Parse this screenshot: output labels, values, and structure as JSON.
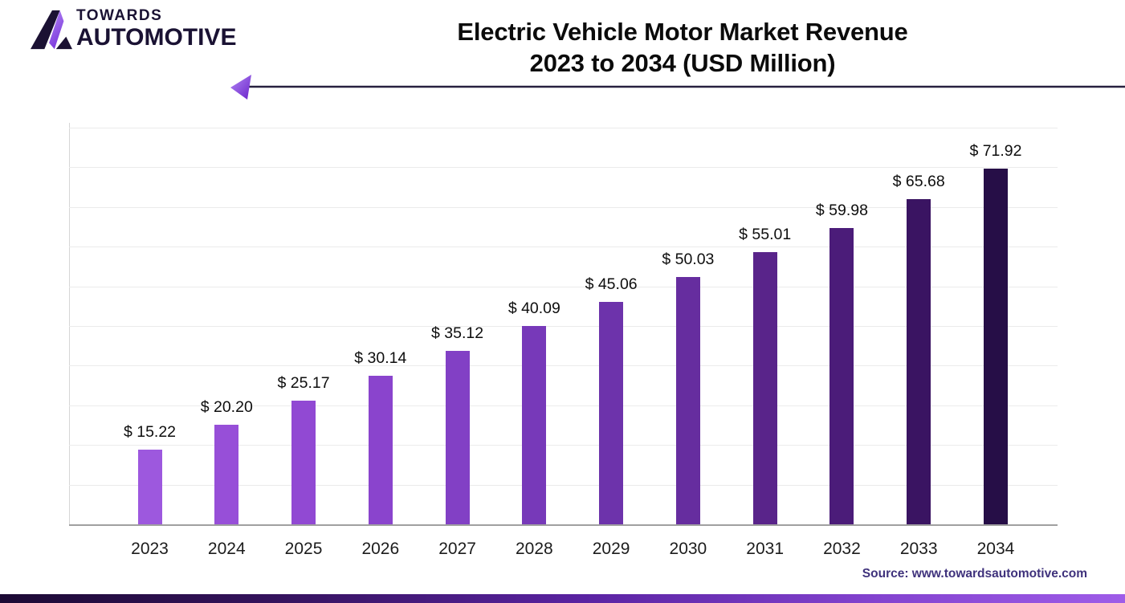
{
  "logo": {
    "line1": "TOWARDS",
    "line2": "AUTOMOTIVE",
    "mark_icon": "towards-automotive-a-mark",
    "text_color": "#1a1233",
    "accent_color": "#8b45e0"
  },
  "title": {
    "line1": "Electric Vehicle Motor Market Revenue",
    "line2": "2023 to 2034 (USD Million)"
  },
  "arrow": {
    "direction": "left",
    "line_color": "#27213f",
    "head_color": "#8a46e3"
  },
  "source": {
    "text": "Source: www.towardsautomotive.com",
    "color": "#3f327c"
  },
  "chart_data": {
    "type": "bar",
    "title": "Electric Vehicle Motor Market Revenue 2023 to 2034 (USD Million)",
    "xlabel": "",
    "ylabel": "",
    "categories": [
      "2023",
      "2024",
      "2025",
      "2026",
      "2027",
      "2028",
      "2029",
      "2030",
      "2031",
      "2032",
      "2033",
      "2034"
    ],
    "values": [
      15.22,
      20.2,
      25.17,
      30.14,
      35.12,
      40.09,
      45.06,
      50.03,
      55.01,
      59.98,
      65.68,
      71.92
    ],
    "value_labels": [
      "$ 15.22",
      "$ 20.20",
      "$ 25.17",
      "$ 30.14",
      "$ 35.12",
      "$ 40.09",
      "$ 45.06",
      "$ 50.03",
      "$ 55.01",
      "$ 59.98",
      "$ 65.68",
      "$ 71.92"
    ],
    "bar_colors": [
      "#9d58de",
      "#974fd8",
      "#9149d3",
      "#8a44cd",
      "#8240c5",
      "#7739b9",
      "#6d33ab",
      "#662d9f",
      "#59248a",
      "#4b1c79",
      "#3a1462",
      "#260e47"
    ],
    "ylim": [
      0,
      80
    ],
    "gridline_step": 8,
    "grid": true,
    "y_tick_labels_visible": false,
    "legend": false,
    "gridline_color": "#ebebeb",
    "axis_line_color": "#a0a0a0"
  }
}
